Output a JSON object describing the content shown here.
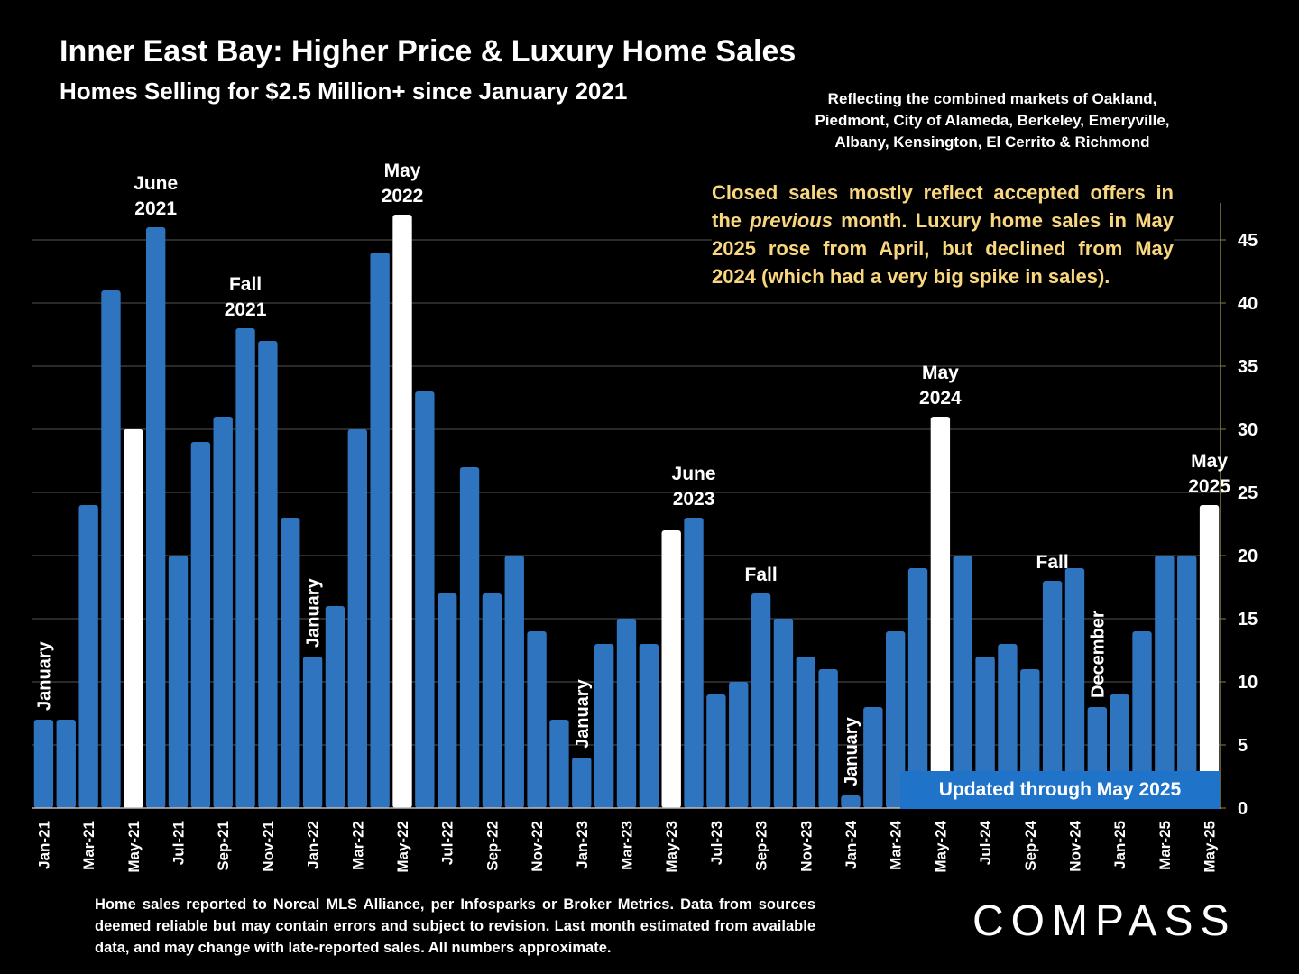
{
  "title": "Inner East Bay: Higher Price & Luxury Home Sales",
  "subtitle": "Homes Selling for $2.5 Million+ since January 2021",
  "reflect_lines": [
    "Reflecting the combined markets of Oakland,",
    "Piedmont, City of Alameda, Berkeley, Emeryville,",
    "Albany, Kensington, El Cerrito & Richmond"
  ],
  "note": {
    "before": "Closed sales mostly reflect accepted offers in the ",
    "emph": "previous",
    "after": " month. Luxury home sales in May 2025 rose from April, but declined from May 2024 (which had a very big spike in sales)."
  },
  "updated_label": "Updated through May 2025",
  "footnote": "Home sales reported to Norcal MLS Alliance, per Infosparks or Broker Metrics. Data from sources deemed reliable but may contain errors and subject to revision.  Last month estimated from available data, and may change with late-reported sales. All numbers approximate.",
  "logo": "COMPASS",
  "colors": {
    "bar": "#2f74bf",
    "highlight": "#ffffff",
    "note": "#f9d77e",
    "axis": "#8a7a4a",
    "grid": "#555555",
    "badge": "#1f73c8"
  },
  "chart_data": {
    "type": "bar",
    "categories": [
      "Jan-21",
      "Feb-21",
      "Mar-21",
      "Apr-21",
      "May-21",
      "Jun-21",
      "Jul-21",
      "Aug-21",
      "Sep-21",
      "Oct-21",
      "Nov-21",
      "Dec-21",
      "Jan-22",
      "Feb-22",
      "Mar-22",
      "Apr-22",
      "May-22",
      "Jun-22",
      "Jul-22",
      "Aug-22",
      "Sep-22",
      "Oct-22",
      "Nov-22",
      "Dec-22",
      "Jan-23",
      "Feb-23",
      "Mar-23",
      "Apr-23",
      "May-23",
      "Jun-23",
      "Jul-23",
      "Aug-23",
      "Sep-23",
      "Oct-23",
      "Nov-23",
      "Dec-23",
      "Jan-24",
      "Feb-24",
      "Mar-24",
      "Apr-24",
      "May-24",
      "Jun-24",
      "Jul-24",
      "Aug-24",
      "Sep-24",
      "Oct-24",
      "Nov-24",
      "Dec-24",
      "Jan-25",
      "Feb-25",
      "Mar-25",
      "Apr-25",
      "May-25"
    ],
    "x_tick_labels": [
      "Jan-21",
      "Mar-21",
      "May-21",
      "Jul-21",
      "Sep-21",
      "Nov-21",
      "Jan-22",
      "Mar-22",
      "May-22",
      "Jul-22",
      "Sep-22",
      "Nov-22",
      "Jan-23",
      "Mar-23",
      "May-23",
      "Jul-23",
      "Sep-23",
      "Nov-23",
      "Jan-24",
      "Mar-24",
      "May-24",
      "Jul-24",
      "Sep-24",
      "Nov-24",
      "Jan-25",
      "Mar-25",
      "May-25"
    ],
    "values": [
      7,
      7,
      24,
      41,
      30,
      46,
      20,
      29,
      31,
      38,
      37,
      23,
      12,
      16,
      30,
      44,
      47,
      33,
      17,
      27,
      17,
      20,
      14,
      7,
      4,
      13,
      15,
      13,
      22,
      23,
      9,
      10,
      17,
      15,
      12,
      11,
      1,
      8,
      14,
      19,
      31,
      20,
      12,
      13,
      11,
      18,
      19,
      8,
      9,
      14,
      20,
      20,
      24
    ],
    "highlight": [
      "May-21",
      "May-22",
      "May-23",
      "May-24",
      "May-25"
    ],
    "ylim": [
      0,
      47
    ],
    "yticks": [
      0,
      5,
      10,
      15,
      20,
      25,
      30,
      35,
      40,
      45
    ],
    "y_axis_side": "right",
    "grid": true,
    "annotations": [
      {
        "text": [
          "January"
        ],
        "at": "Jan-21",
        "rotated": true
      },
      {
        "text": [
          "June",
          "2021"
        ],
        "at": "Jun-21",
        "rotated": false
      },
      {
        "text": [
          "Fall",
          "2021"
        ],
        "at": "Oct-21",
        "rotated": false
      },
      {
        "text": [
          "January"
        ],
        "at": "Jan-22",
        "rotated": true
      },
      {
        "text": [
          "May",
          "2022"
        ],
        "at": "May-22",
        "rotated": false
      },
      {
        "text": [
          "January"
        ],
        "at": "Jan-23",
        "rotated": true
      },
      {
        "text": [
          "June",
          "2023"
        ],
        "at": "Jun-23",
        "rotated": false
      },
      {
        "text": [
          "Fall"
        ],
        "at": "Sep-23",
        "rotated": false
      },
      {
        "text": [
          "January"
        ],
        "at": "Jan-24",
        "rotated": true
      },
      {
        "text": [
          "May",
          "2024"
        ],
        "at": "May-24",
        "rotated": false
      },
      {
        "text": [
          "Fall"
        ],
        "at": "Oct-24",
        "rotated": false
      },
      {
        "text": [
          "December"
        ],
        "at": "Dec-24",
        "rotated": true
      },
      {
        "text": [
          "May",
          "2025"
        ],
        "at": "May-25",
        "rotated": false
      }
    ]
  }
}
